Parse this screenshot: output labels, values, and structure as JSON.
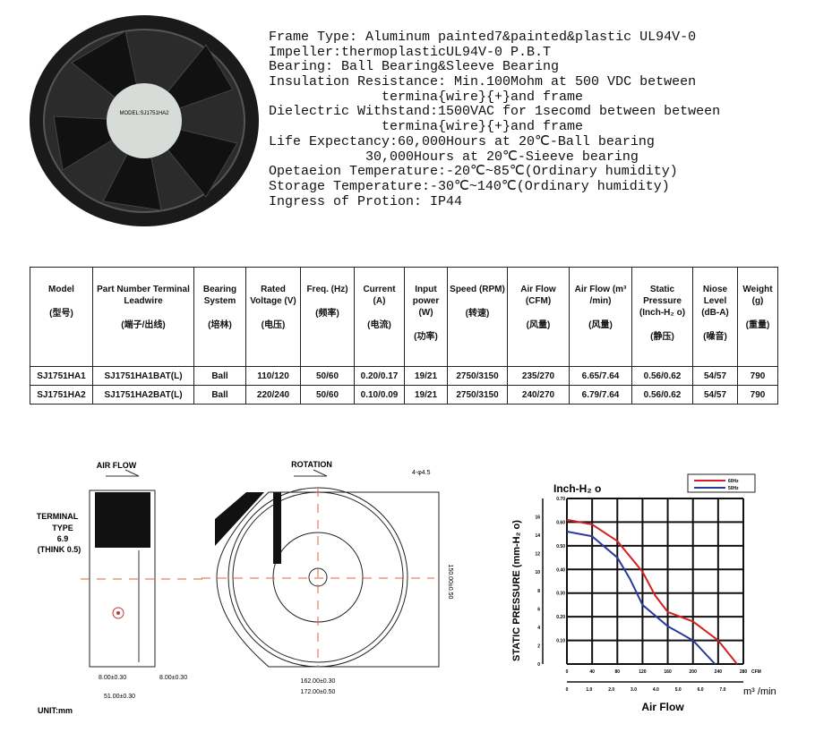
{
  "specs": [
    "Frame Type: Aluminum painted7&painted&plastic UL94V-0",
    "Impeller:thermoplasticUL94V-0 P.B.T",
    "Bearing: Ball Bearing&Sleeve Bearing",
    "Insulation Resistance: Min.100Mohm at 500 VDC between",
    "              termina{wire}{+}and frame",
    "Dielectric Withstand:1500VAC for 1secomd between between",
    "              termina{wire}{+}and frame",
    "Life Expectancy:60,000Hours at 20℃-Ball bearing",
    "            30,000Hours at 20℃-Sieeve bearing",
    "Opetaeion Temperature:-20℃~85℃(Ordinary humidity)",
    "Storage Temperature:-30℃~140℃(Ordinary humidity)",
    "Ingress of Protion: IP44"
  ],
  "fan_label": "MODEL:SJ1751HA2",
  "table": {
    "headers": [
      {
        "en": "Model",
        "cn": "(型号)"
      },
      {
        "en": "Part Number Terminal Leadwire",
        "cn": "(端子/出线)"
      },
      {
        "en": "Bearing System",
        "cn": "(培林)"
      },
      {
        "en": "Rated Voltage (V)",
        "cn": "(电压)"
      },
      {
        "en": "Freq. (Hz)",
        "cn": "(频率)"
      },
      {
        "en": "Current (A)",
        "cn": "(电流)"
      },
      {
        "en": "Input power (W)",
        "cn": "(功率)"
      },
      {
        "en": "Speed (RPM)",
        "cn": "(转速)"
      },
      {
        "en": "Air Flow (CFM)",
        "cn": "(风量)"
      },
      {
        "en": "Air Flow (m³ /min)",
        "cn": "(风量)"
      },
      {
        "en": "Static Pressure (Inch-H₂ o)",
        "cn": "(静压)"
      },
      {
        "en": "Niose Level (dB-A)",
        "cn": "(噪音)"
      },
      {
        "en": "Weight (g)",
        "cn": "(重量)"
      }
    ],
    "rows": [
      [
        "SJ1751HA1",
        "SJ1751HA1BAT(L)",
        "Ball",
        "110/120",
        "50/60",
        "0.20/0.17",
        "19/21",
        "2750/3150",
        "235/270",
        "6.65/7.64",
        "0.56/0.62",
        "54/57",
        "790"
      ],
      [
        "SJ1751HA2",
        "SJ1751HA2BAT(L)",
        "Ball",
        "220/240",
        "50/60",
        "0.10/0.09",
        "19/21",
        "2750/3150",
        "240/270",
        "6.79/7.64",
        "0.56/0.62",
        "54/57",
        "790"
      ]
    ]
  },
  "drawing": {
    "air_flow": "AIR FLOW",
    "terminal": "TERMINAL",
    "type": "TYPE",
    "type_val": "6.9",
    "think": "(THINK 0.5)",
    "d8a": "8.00±0.30",
    "d8b": "8.00±0.30",
    "d51": "51.00±0.30",
    "unit": "UNIT:mm",
    "rotation": "ROTATION",
    "hole": "4-φ4.5",
    "d150": "150.00±0.50",
    "d162": "162.00±0.30",
    "d172": "172.00±0.50"
  },
  "chart_data": {
    "type": "line",
    "title": "Inch-H₂ o",
    "ylabel": "STATIC PRESSURE (mm-H₂ o)",
    "xlabel": "Air Flow",
    "x_unit": "CFM",
    "x2_unit": "m³ /min",
    "xlim": [
      0,
      280
    ],
    "ylim": [
      0,
      0.7
    ],
    "x_ticks": [
      0,
      40,
      80,
      120,
      160,
      200,
      240,
      280
    ],
    "y_ticks": [
      "0.10",
      "0.20",
      "0.30",
      "0.40",
      "0.50",
      "0.60",
      "0.70"
    ],
    "y2_ticks": [
      0,
      2,
      4,
      6,
      8,
      10,
      12,
      14,
      16
    ],
    "x2_ticks": [
      "0",
      "1.0",
      "2.0",
      "3.0",
      "4.0",
      "5.0",
      "6.0",
      "7.0"
    ],
    "grid": true,
    "legend": "top-right",
    "series": [
      {
        "name": "60Hz",
        "color": "#d42020",
        "x": [
          0,
          40,
          80,
          120,
          140,
          160,
          200,
          240,
          270
        ],
        "y": [
          0.61,
          0.59,
          0.52,
          0.39,
          0.29,
          0.22,
          0.18,
          0.1,
          0
        ]
      },
      {
        "name": "50Hz",
        "color": "#2a3a9a",
        "x": [
          0,
          40,
          80,
          100,
          120,
          160,
          200,
          235
        ],
        "y": [
          0.56,
          0.54,
          0.45,
          0.36,
          0.25,
          0.16,
          0.1,
          0
        ]
      }
    ]
  }
}
